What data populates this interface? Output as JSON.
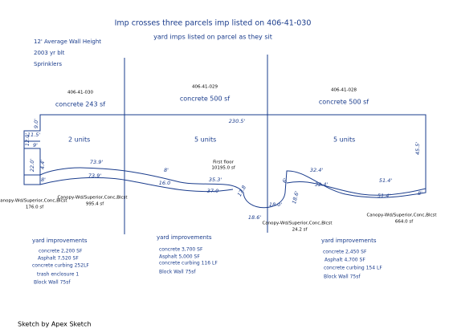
{
  "header": {
    "title": "Imp crosses three parcels imp listed on 406-41-030",
    "subtitle": "yard imps listed on parcel as they sit"
  },
  "notes": [
    "12' Average Wall Height",
    "2003 yr blt",
    "Sprinklers"
  ],
  "parcels": [
    {
      "label": "406-41-030",
      "concrete": "concrete  243 sf",
      "units": "2 units"
    },
    {
      "label": "406-41-029",
      "concrete": "concrete  500 sf",
      "units": "5 units"
    },
    {
      "label": "406-41-028",
      "concrete": "concrete  500 sf",
      "units": "5 units"
    }
  ],
  "dimensions": [
    "9.0'",
    "11.5'",
    "12.0'",
    "9'",
    "22.0'",
    "8'",
    "4.4'",
    "73.9'",
    "73.9'",
    "16.0",
    "37.0",
    "35.3'",
    "17.8",
    "18.0'",
    "18.6'",
    "18.6'",
    "6'",
    "32.4'",
    "32.4'",
    "51.4'",
    "51.4'",
    "45.5'",
    "8'",
    "230.5'",
    "8'"
  ],
  "floor": {
    "label": "First floor",
    "area": "10195.0 sf"
  },
  "canopies": [
    {
      "label": "Canopy-Wd/Superior,Conc,Blcst",
      "area": "176.0 sf"
    },
    {
      "label": "Canopy-Wd/Superior,Conc,Blcst",
      "area": "995.4 sf"
    },
    {
      "label": "Canopy-Wd/Superior,Conc,Blcst",
      "area": "24.2 sf"
    },
    {
      "label": "Canopy-Wd/Superior,Conc,Blcst",
      "area": "664.0 sf"
    }
  ],
  "yard": [
    {
      "title": "yard improvements",
      "items": [
        "concrete 2,200 SF",
        "Asphalt 7,520 SF",
        "concrete curbing 252LF",
        "trash enclosure  1",
        "Block Wall  75sf"
      ]
    },
    {
      "title": "yard improvements",
      "items": [
        "concrete 3,700 SF",
        "Asphalt 5,000 SF",
        "concrete curbing 116 LF",
        "Block Wall  75sf"
      ]
    },
    {
      "title": "yard improvements",
      "items": [
        "concrete 2,450 SF",
        "Asphalt 4,700 SF",
        "concrete curbing 154 LF",
        "Block Wall  75sf"
      ]
    }
  ],
  "footer": "Sketch by Apex Sketch"
}
